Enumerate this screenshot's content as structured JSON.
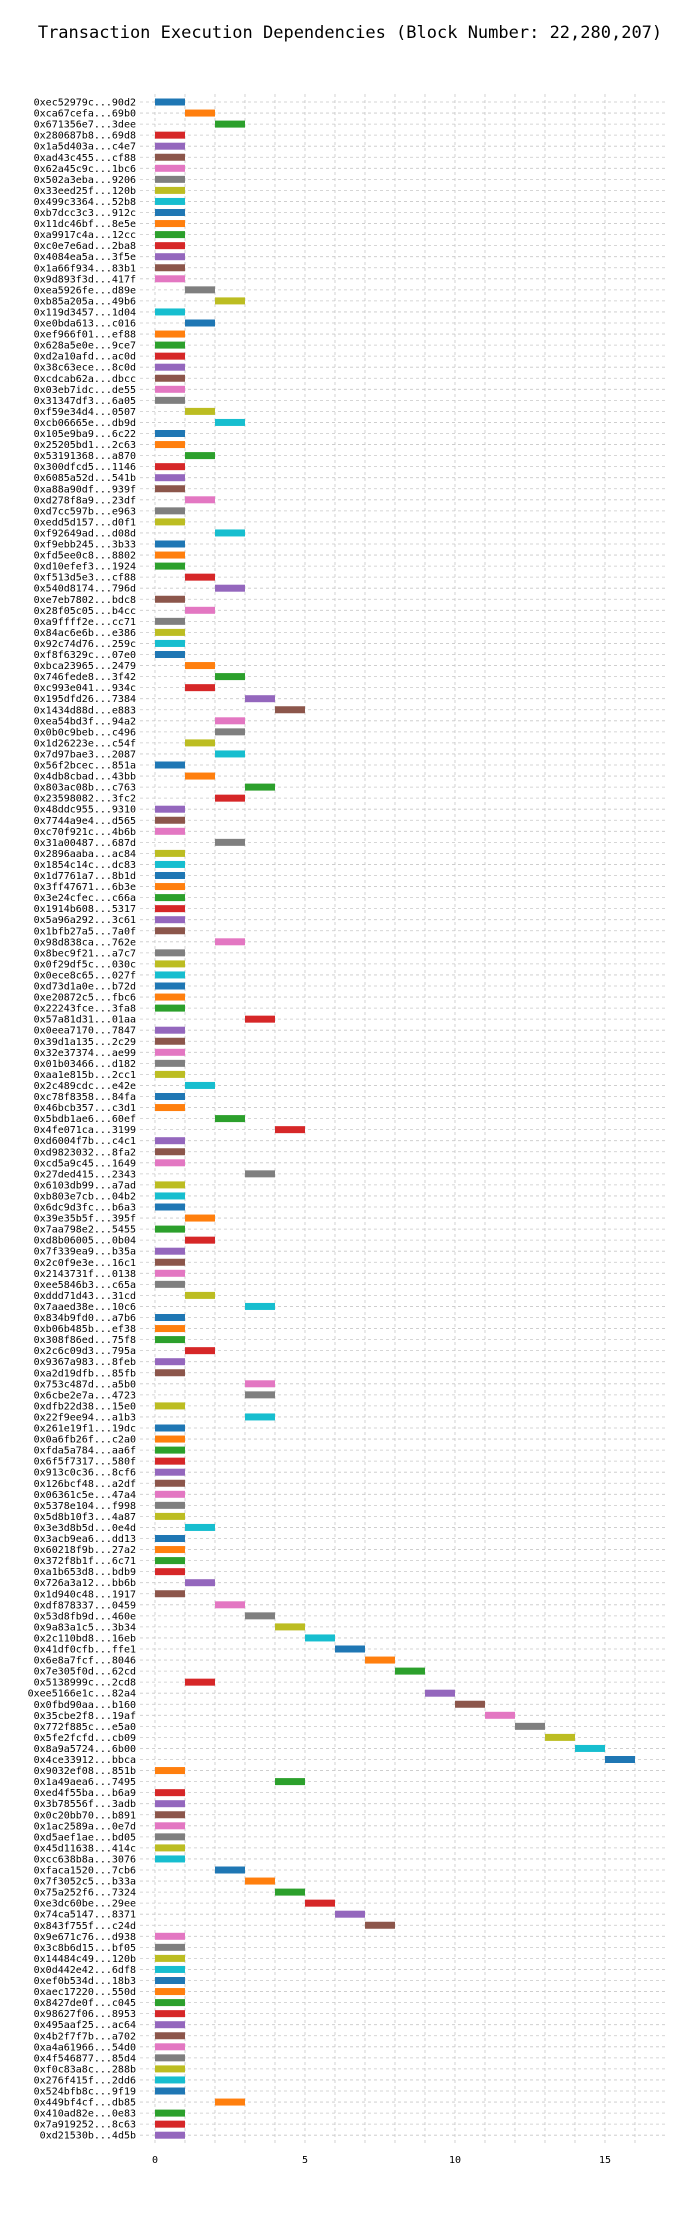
{
  "chart_data": {
    "type": "bar",
    "orientation": "horizontal",
    "title": "Transaction Execution Dependencies (Block Number: 22,280,207)",
    "xlabel": "",
    "ylabel": "",
    "xlim": [
      -0.5,
      17
    ],
    "x_ticks": [
      0,
      5,
      10,
      15
    ],
    "grid": "dashed vertical and horizontal",
    "legend": "none",
    "palette": [
      "#1f77b4",
      "#ff7f0e",
      "#2ca02c",
      "#d62728",
      "#9467bd",
      "#8c564b",
      "#e377c2",
      "#7f7f7f",
      "#bcbd22",
      "#17becf"
    ],
    "categories": [
      "0xec52979c...90d2",
      "0xca67cefa...69b0",
      "0x671356e7...3dee",
      "0x280687b8...69d8",
      "0x1a5d403a...c4e7",
      "0xad43c455...cf88",
      "0x62a45c9c...1bc6",
      "0x502a3eba...9206",
      "0x33eed25f...120b",
      "0x499c3364...52b8",
      "0xb7dcc3c3...912c",
      "0x11dc46bf...8e5e",
      "0xa9917c4a...12cc",
      "0xc0e7e6ad...2ba8",
      "0x4084ea5a...3f5e",
      "0x1a66f934...83b1",
      "0x9d893f3d...417f",
      "0xea5926fe...d89e",
      "0xb85a205a...49b6",
      "0x119d3457...1d04",
      "0xe0bda613...c016",
      "0xef966f01...ef88",
      "0x628a5e0e...9ce7",
      "0xd2a10afd...ac0d",
      "0x38c63ece...8c0d",
      "0xcdcab62a...dbcc",
      "0x03eb7idc...de55",
      "0x31347df3...6a05",
      "0xf59e34d4...0507",
      "0xcb06665e...db9d",
      "0x105e9ba9...6c22",
      "0x25205bd1...2c63",
      "0x53191368...a870",
      "0x300dfcd5...1146",
      "0x6085a52d...541b",
      "0xa88a90df...939f",
      "0xd278f8a9...23df",
      "0xd7cc597b...e963",
      "0xedd5d157...d0f1",
      "0xf92649ad...d08d",
      "0xf9ebb245...3b33",
      "0xfd5ee0c8...8802",
      "0xd10efef3...1924",
      "0xf513d5e3...cf88",
      "0x540d8174...796d",
      "0xe7eb7802...bdc8",
      "0x28f05c05...b4cc",
      "0xa9ffff2e...cc71",
      "0x84ac6e6b...e386",
      "0x92c74d76...259c",
      "0xf8f6329c...07e0",
      "0xbca23965...2479",
      "0x746fede8...3f42",
      "0xc993e041...934c",
      "0x195dfd26...7384",
      "0x1434d88d...e883",
      "0xea54bd3f...94a2",
      "0x0b0c9beb...c496",
      "0x1d26223e...c54f",
      "0x7d97bae3...2087",
      "0x56f2bcec...851a",
      "0x4db8cbad...43bb",
      "0x803ac08b...c763",
      "0x23598082...3fc2",
      "0x48ddc955...9310",
      "0x7744a9e4...d565",
      "0xc70f921c...4b6b",
      "0x31a00487...687d",
      "0x2896aaba...ac84",
      "0x1854c14c...dc83",
      "0x1d7761a7...8b1d",
      "0x3ff47671...6b3e",
      "0x3e24cfec...c66a",
      "0x1914b608...5317",
      "0x5a96a292...3c61",
      "0x1bfb27a5...7a0f",
      "0x98d838ca...762e",
      "0x8bec9f21...a7c7",
      "0x0f29df5c...030c",
      "0x0ece8c65...027f",
      "0xd73d1a0e...b72d",
      "0xe20872c5...fbc6",
      "0x22243fce...3fa8",
      "0x57a81d31...01aa",
      "0x0eea7170...7847",
      "0x39d1a135...2c29",
      "0x32e37374...ae99",
      "0x01b03466...d182",
      "0xaa1e815b...2cc1",
      "0x2c489cdc...e42e",
      "0xc78f8358...84fa",
      "0x46bcb357...c3d1",
      "0x5bdb1ae6...60ef",
      "0x4fe071ca...3199",
      "0xd6004f7b...c4c1",
      "0xd9823032...8fa2",
      "0xcd5a9c45...1649",
      "0x27ded415...2343",
      "0x6103db99...a7ad",
      "0xb803e7cb...04b2",
      "0x6dc9d3fc...b6a3",
      "0x39e35b5f...395f",
      "0x7aa798e2...5455",
      "0xd8b06005...0b04",
      "0x7f339ea9...b35a",
      "0x2c0f9e3e...16c1",
      "0x2143731f...0138",
      "0xee5846b3...c65a",
      "0xddd71d43...31cd",
      "0x7aaed38e...10c6",
      "0x834b9fd0...a7b6",
      "0xb06b485b...ef38",
      "0x308f86ed...75f8",
      "0x2c6c09d3...795a",
      "0x9367a983...8feb",
      "0xa2d19dfb...85fb",
      "0x753c487d...a5b0",
      "0x6cbe2e7a...4723",
      "0xdfb22d38...15e0",
      "0x22f9ee94...a1b3",
      "0x261e19f1...19dc",
      "0x0a6fb26f...c2a0",
      "0xfda5a784...aa6f",
      "0x6f5f7317...580f",
      "0x913c0c36...8cf6",
      "0x126bcf48...a2df",
      "0x06361c5e...47a4",
      "0x5378e104...f998",
      "0x5d8b10f3...4a87",
      "0x3e3d8b5d...0e4d",
      "0x3acb9ea6...dd13",
      "0x60218f9b...27a2",
      "0x372f8b1f...6c71",
      "0xa1b653d8...bdb9",
      "0x726a3a12...bb6b",
      "0x1d940c48...1917",
      "0xdf878337...0459",
      "0x53d8fb9d...460e",
      "0x9a83a1c5...3b34",
      "0x2c110bd8...16eb",
      "0x41df0cfb...ffe1",
      "0x6e8a7fcf...8046",
      "0x7e305f0d...62cd",
      "0x5138999c...2cd8",
      "0xee5166e1c...82a4",
      "0x0fbd90aa...b160",
      "0x35cbe2f8...19af",
      "0x772f885c...e5a0",
      "0x5fe2fcfd...cb09",
      "0x8a9a5724...6b00",
      "0x4ce33912...bbca",
      "0x9032ef08...851b",
      "0x1a49aea6...7495",
      "0xed4f55ba...b6a9",
      "0x3b78556f...3adb",
      "0x0c20bb70...b891",
      "0x1ac2589a...0e7d",
      "0xd5aef1ae...bd05",
      "0x45d11638...414c",
      "0xcc638b8a...3076",
      "0xfaca1520...7cb6",
      "0x7f3052c5...b33a",
      "0x75a252f6...7324",
      "0xe3dc60be...29ee",
      "0x74ca5147...8371",
      "0x843f755f...c24d",
      "0x9e671c76...d938",
      "0x3c8b6d15...bf05",
      "0x14484c49...120b",
      "0x0d442e42...6df8",
      "0xef0b534d...18b3",
      "0xaec17220...550d",
      "0x8427de0f...c045",
      "0x98627f06...8953",
      "0x495aaf25...ac64",
      "0x4b2f7f7b...a702",
      "0xa4a61966...54d0",
      "0x4f546877...85d4",
      "0xf0c83a8c...288b",
      "0x276f415f...2dd6",
      "0x524bfb8c...9f19",
      "0x449bf4cf...db85",
      "0x410ad82e...0e83",
      "0x7a919252...8c63",
      "0xd21530b...4d5b"
    ],
    "starts": [
      0,
      1,
      2,
      0,
      0,
      0,
      0,
      0,
      0,
      0,
      0,
      0,
      0,
      0,
      0,
      0,
      0,
      1,
      2,
      0,
      1,
      0,
      0,
      0,
      0,
      0,
      0,
      0,
      1,
      2,
      0,
      0,
      1,
      0,
      0,
      0,
      1,
      0,
      0,
      2,
      0,
      0,
      0,
      1,
      2,
      0,
      1,
      0,
      0,
      0,
      0,
      1,
      2,
      1,
      3,
      4,
      2,
      2,
      1,
      2,
      0,
      1,
      3,
      2,
      0,
      0,
      0,
      2,
      0,
      0,
      0,
      0,
      0,
      0,
      0,
      0,
      2,
      0,
      0,
      0,
      0,
      0,
      0,
      3,
      0,
      0,
      0,
      0,
      0,
      1,
      0,
      0,
      2,
      4,
      0,
      0,
      0,
      3,
      0,
      0,
      0,
      1,
      0,
      1,
      0,
      0,
      0,
      0,
      1,
      3,
      0,
      0,
      0,
      1,
      0,
      0,
      3,
      3,
      0,
      3,
      0,
      0,
      0,
      0,
      0,
      0,
      0,
      0,
      0,
      1,
      0,
      0,
      0,
      0,
      1,
      0,
      2,
      3,
      4,
      5,
      6,
      7,
      8,
      1,
      9,
      10,
      11,
      12,
      13,
      14,
      15,
      0,
      4,
      0,
      0,
      0,
      0,
      0,
      0,
      0,
      2,
      3,
      4,
      5,
      6,
      7,
      0,
      0,
      0,
      0,
      0,
      0,
      0,
      0,
      0,
      0,
      0,
      0,
      0,
      0,
      0,
      2,
      0,
      0,
      0
    ],
    "durations": "1 each",
    "colors": [
      "#1f77b4",
      "#ff7f0e",
      "#2ca02c",
      "#d62728",
      "#9467bd",
      "#8c564b",
      "#e377c2",
      "#7f7f7f",
      "#bcbd22",
      "#17becf",
      "#1f77b4",
      "#ff7f0e",
      "#2ca02c",
      "#d62728",
      "#9467bd",
      "#8c564b",
      "#e377c2",
      "#7f7f7f",
      "#bcbd22",
      "#17becf",
      "#1f77b4",
      "#ff7f0e",
      "#2ca02c",
      "#d62728",
      "#9467bd",
      "#8c564b",
      "#e377c2",
      "#7f7f7f",
      "#bcbd22",
      "#17becf",
      "#1f77b4",
      "#ff7f0e",
      "#2ca02c",
      "#d62728",
      "#9467bd",
      "#8c564b",
      "#e377c2",
      "#7f7f7f",
      "#bcbd22",
      "#17becf",
      "#1f77b4",
      "#ff7f0e",
      "#2ca02c",
      "#d62728",
      "#9467bd",
      "#8c564b",
      "#e377c2",
      "#7f7f7f",
      "#bcbd22",
      "#17becf",
      "#1f77b4",
      "#ff7f0e",
      "#2ca02c",
      "#d62728",
      "#9467bd",
      "#8c564b",
      "#e377c2",
      "#7f7f7f",
      "#bcbd22",
      "#17becf",
      "#1f77b4",
      "#ff7f0e",
      "#2ca02c",
      "#d62728",
      "#9467bd",
      "#8c564b",
      "#e377c2",
      "#7f7f7f",
      "#bcbd22",
      "#17becf",
      "#1f77b4",
      "#ff7f0e",
      "#2ca02c",
      "#d62728",
      "#9467bd",
      "#8c564b",
      "#e377c2",
      "#7f7f7f",
      "#bcbd22",
      "#17becf",
      "#1f77b4",
      "#ff7f0e",
      "#2ca02c",
      "#d62728",
      "#9467bd",
      "#8c564b",
      "#e377c2",
      "#7f7f7f",
      "#bcbd22",
      "#17becf",
      "#1f77b4",
      "#ff7f0e",
      "#2ca02c",
      "#d62728",
      "#9467bd",
      "#8c564b",
      "#e377c2",
      "#7f7f7f",
      "#bcbd22",
      "#17becf",
      "#1f77b4",
      "#ff7f0e",
      "#2ca02c",
      "#d62728",
      "#9467bd",
      "#8c564b",
      "#e377c2",
      "#7f7f7f",
      "#bcbd22",
      "#17becf",
      "#1f77b4",
      "#ff7f0e",
      "#2ca02c",
      "#d62728",
      "#9467bd",
      "#8c564b",
      "#e377c2",
      "#7f7f7f",
      "#bcbd22",
      "#17becf",
      "#1f77b4",
      "#ff7f0e",
      "#2ca02c",
      "#d62728",
      "#9467bd",
      "#8c564b",
      "#e377c2",
      "#7f7f7f",
      "#bcbd22",
      "#17becf",
      "#1f77b4",
      "#ff7f0e",
      "#2ca02c",
      "#d62728",
      "#9467bd",
      "#8c564b",
      "#e377c2",
      "#7f7f7f",
      "#bcbd22",
      "#17becf",
      "#1f77b4",
      "#ff7f0e",
      "#2ca02c",
      "#d62728",
      "#9467bd",
      "#8c564b",
      "#e377c2",
      "#7f7f7f",
      "#bcbd22",
      "#17becf",
      "#1f77b4",
      "#ff7f0e",
      "#2ca02c",
      "#d62728",
      "#9467bd",
      "#8c564b",
      "#e377c2",
      "#7f7f7f",
      "#bcbd22",
      "#17becf",
      "#1f77b4",
      "#ff7f0e",
      "#2ca02c",
      "#d62728",
      "#9467bd",
      "#8c564b",
      "#e377c2",
      "#7f7f7f",
      "#bcbd22",
      "#17becf",
      "#1f77b4",
      "#ff7f0e",
      "#2ca02c",
      "#d62728",
      "#9467bd",
      "#8c564b",
      "#e377c2",
      "#7f7f7f",
      "#bcbd22",
      "#17becf",
      "#1f77b4",
      "#ff7f0e",
      "#2ca02c",
      "#d62728",
      "#9467bd"
    ]
  }
}
